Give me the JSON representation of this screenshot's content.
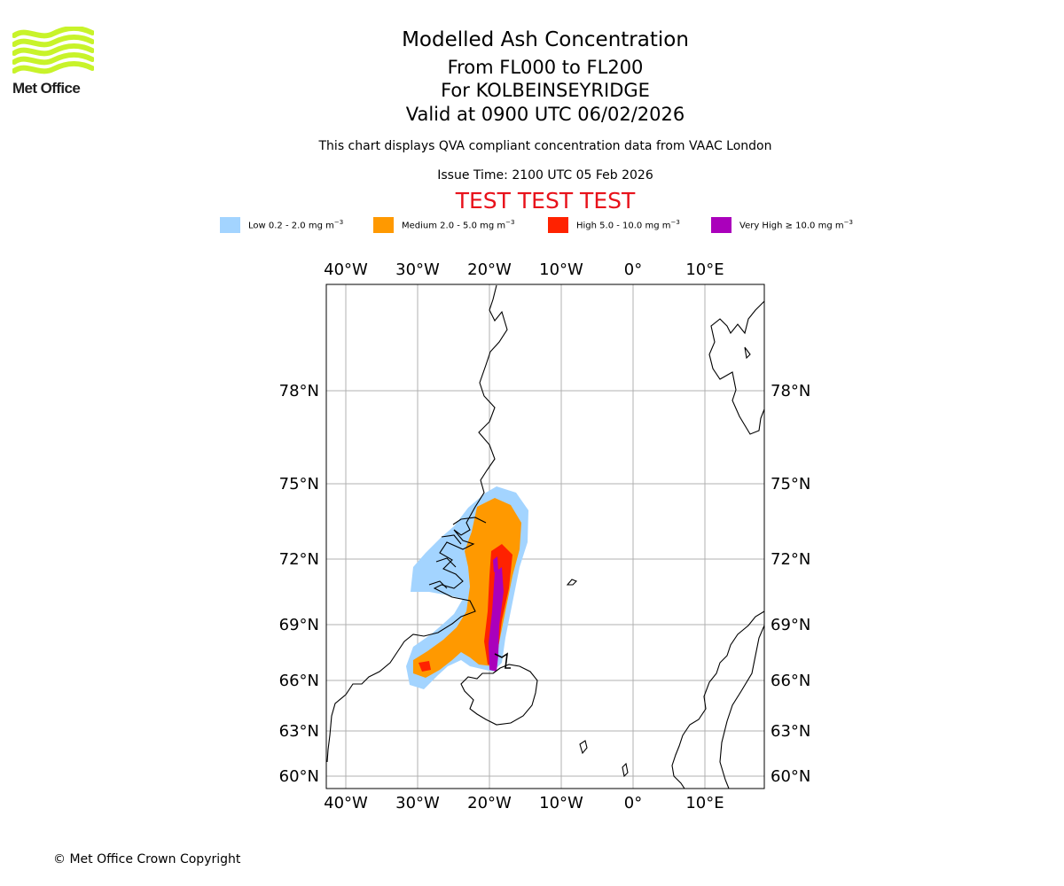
{
  "brand": {
    "name": "Met Office",
    "logo_color": "#c8f32a",
    "logo_icon": "met-office-waves-icon"
  },
  "header": {
    "title": "Modelled Ash Concentration",
    "level": "From FL000 to FL200",
    "location": "For KOLBEINSEYRIDGE",
    "valid": "Valid at 0900 UTC 06/02/2026",
    "description": "This chart displays QVA compliant concentration data from VAAC London",
    "issue_time": "Issue Time: 2100 UTC 05 Feb 2026",
    "test_banner": "TEST TEST TEST",
    "test_color": "#e8121b"
  },
  "legend": [
    {
      "label": "Low 0.2 - 2.0 mg m",
      "unit_exp": "−3",
      "color": "#a3d4ff"
    },
    {
      "label": "Medium 2.0 - 5.0 mg m",
      "unit_exp": "−3",
      "color": "#ff9900"
    },
    {
      "label": "High 5.0 - 10.0 mg m",
      "unit_exp": "−3",
      "color": "#ff2200"
    },
    {
      "label": "Very High  ≥  10.0 mg m",
      "unit_exp": "−3",
      "color": "#aa00bb"
    }
  ],
  "map": {
    "lon_ticks": [
      "40°W",
      "30°W",
      "20°W",
      "10°W",
      "0°",
      "10°E"
    ],
    "lat_ticks": [
      "78°N",
      "75°N",
      "72°N",
      "69°N",
      "66°N",
      "63°N",
      "60°N"
    ]
  },
  "footer": {
    "copyright": "© Met Office Crown Copyright"
  }
}
